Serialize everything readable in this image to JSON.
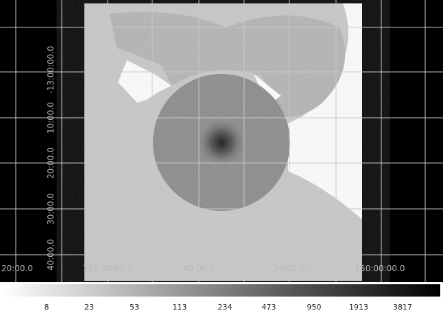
{
  "x_axis_labels": [
    "20:00.0",
    "151:00:00.0",
    "40:00.0",
    "20:00.0",
    "150:00:00.0"
  ],
  "y_axis_labels": [
    "40:00.0",
    "30:00.0",
    "20:00.0",
    "10:00.0",
    "-13:00:00.0"
  ],
  "colorbar": {
    "labels": [
      8,
      23,
      53,
      113,
      234,
      473,
      950,
      1913,
      3817
    ]
  }
}
